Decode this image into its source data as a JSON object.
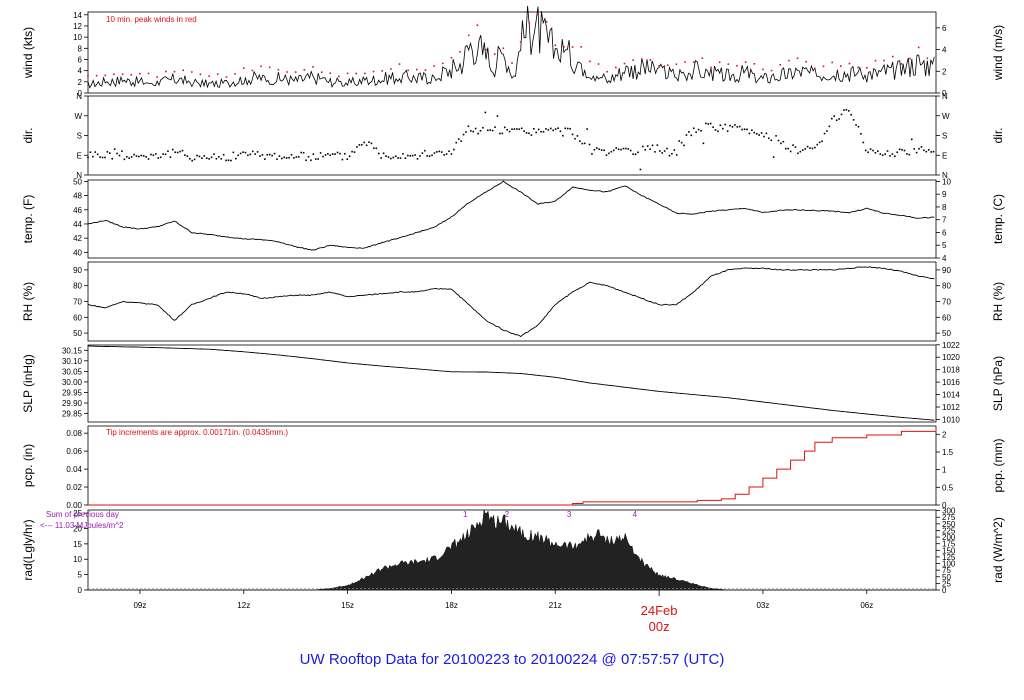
{
  "title": "UW Rooftop Data for 20100223  to  20100224 @ 07:57:57  (UTC)",
  "colors": {
    "line": "#000000",
    "peak": "#e01010",
    "precip": "#e01010",
    "note": "#e01010",
    "rad_note": "#9a1ab8",
    "title": "#1a1ae6"
  },
  "chart_data": {
    "type": "line",
    "x_axis": {
      "unit": "hours since 2010-02-23 00z",
      "range": [
        7.5,
        32.0
      ],
      "ticks": [
        {
          "x": 9,
          "label": "09z"
        },
        {
          "x": 12,
          "label": "12z"
        },
        {
          "x": 15,
          "label": "15z"
        },
        {
          "x": 18,
          "label": "18z"
        },
        {
          "x": 21,
          "label": "21z"
        },
        {
          "x": 27,
          "label": "03z"
        },
        {
          "x": 30,
          "label": "06z"
        }
      ],
      "date_marker": {
        "x": 24,
        "date": "24Feb",
        "time": "00z"
      }
    },
    "panels": [
      {
        "id": "wind",
        "ylabel_left": "wind (kts)",
        "ylabel_right": "wind (m/s)",
        "ylim": [
          0,
          14.5
        ],
        "left_ticks": [
          0,
          2,
          4,
          6,
          8,
          10,
          12,
          14
        ],
        "right_ticks": [
          {
            "v": 0,
            "label": "0"
          },
          {
            "v": 3.888,
            "label": "2"
          },
          {
            "v": 7.776,
            "label": "4"
          },
          {
            "v": 11.664,
            "label": "6"
          }
        ],
        "note": "10 min. peak winds in red",
        "series": [
          {
            "x": [
              7.5,
              8,
              8.5,
              9,
              9.5,
              10,
              10.5,
              11,
              11.5,
              12,
              12.5,
              13,
              13.5,
              14,
              14.5,
              15,
              15.5,
              16,
              16.5,
              17,
              17.5,
              18,
              18.3,
              18.6,
              18.9,
              19.2,
              19.5,
              19.8,
              20.1,
              20.4,
              20.7,
              21,
              21.5,
              22,
              22.5,
              23,
              23.5,
              24,
              24.5,
              25,
              25.5,
              26,
              26.5,
              27,
              27.5,
              28,
              28.5,
              29,
              29.5,
              30,
              30.5,
              31,
              31.5,
              32
            ],
            "y": [
              1.5,
              2,
              2.2,
              2,
              1.8,
              2.5,
              2,
              1.6,
              1.8,
              2.5,
              2.8,
              2.6,
              2.2,
              2.8,
              2,
              1.8,
              2.2,
              2.5,
              3,
              2.6,
              2.8,
              4.2,
              5.5,
              9,
              7.5,
              5,
              7,
              3,
              10.5,
              12.2,
              9.5,
              7.5,
              6.5,
              4.2,
              2.2,
              4,
              4.4,
              3.8,
              3.2,
              4.2,
              3.5,
              3,
              3.6,
              2.5,
              3,
              4,
              3.2,
              3.8,
              3.5,
              3.4,
              3.8,
              4.2,
              5.5,
              4.5
            ]
          }
        ]
      },
      {
        "id": "dir",
        "ylabel_left": "dir.",
        "ylabel_right": "dir.",
        "ylim": [
          0,
          360
        ],
        "left_ticks": [
          {
            "v": 0,
            "label": "N"
          },
          {
            "v": 90,
            "label": "E"
          },
          {
            "v": 180,
            "label": "S"
          },
          {
            "v": 270,
            "label": "W"
          },
          {
            "v": 360,
            "label": "N"
          }
        ],
        "series": [
          {
            "x": [
              7.5,
              8,
              8.5,
              9,
              9.5,
              10,
              10.5,
              11,
              11.5,
              12,
              12.5,
              13,
              13.5,
              14,
              14.5,
              15,
              15.5,
              16,
              16.5,
              17,
              17.5,
              18,
              18.5,
              19,
              19.5,
              20,
              20.5,
              21,
              21.5,
              22,
              22.5,
              23,
              23.5,
              24,
              24.5,
              25,
              25.5,
              26,
              26.5,
              27,
              27.5,
              28,
              28.5,
              29,
              29.5,
              30,
              30.5,
              31,
              31.5,
              32
            ],
            "y": [
              95,
              92,
              90,
              88,
              90,
              100,
              85,
              82,
              80,
              95,
              90,
              88,
              82,
              85,
              88,
              85,
              160,
              90,
              95,
              92,
              95,
              110,
              205,
              200,
              200,
              198,
              200,
              200,
              195,
              120,
              110,
              100,
              110,
              120,
              100,
              210,
              220,
              215,
              205,
              190,
              150,
              110,
              120,
              240,
              310,
              110,
              100,
              105,
              115,
              125
            ]
          }
        ]
      },
      {
        "id": "temp",
        "ylabel_left": "temp. (F)",
        "ylabel_right": "temp. (C)",
        "ylim": [
          39.2,
          50.2
        ],
        "left_ticks": [
          40,
          42,
          44,
          46,
          48,
          50
        ],
        "right_ticks": [
          {
            "v": 39.2,
            "label": "4"
          },
          {
            "v": 41.0,
            "label": "5"
          },
          {
            "v": 42.8,
            "label": "6"
          },
          {
            "v": 44.6,
            "label": "7"
          },
          {
            "v": 46.4,
            "label": "8"
          },
          {
            "v": 48.2,
            "label": "9"
          },
          {
            "v": 50.0,
            "label": "10"
          }
        ],
        "series": [
          {
            "x": [
              7.5,
              8,
              8.5,
              9,
              9.5,
              10,
              10.5,
              11,
              11.5,
              12,
              12.5,
              13,
              13.5,
              14,
              14.5,
              15,
              15.5,
              16,
              16.5,
              17,
              17.5,
              18,
              18.5,
              19,
              19.5,
              20,
              20.5,
              21,
              21.5,
              22,
              22.5,
              23,
              23.5,
              24,
              24.5,
              25,
              25.5,
              26,
              26.5,
              27,
              27.5,
              28,
              28.5,
              29,
              29.5,
              30,
              30.5,
              31,
              31.5,
              32
            ],
            "y": [
              44,
              44.5,
              43.6,
              43.3,
              43.6,
              44.4,
              42.8,
              42.5,
              42.2,
              41.9,
              41.8,
              41.5,
              40.8,
              40.3,
              41,
              40.7,
              40.6,
              41.4,
              42,
              42.8,
              43.5,
              45,
              47,
              48.5,
              50,
              48.5,
              46.8,
              47.2,
              49.2,
              48.8,
              48.5,
              49.4,
              48,
              46.8,
              45.5,
              45.4,
              45.8,
              46,
              46.2,
              45.6,
              45.9,
              46,
              45.9,
              45.8,
              45.6,
              46.2,
              45.5,
              45.2,
              44.8,
              45
            ]
          }
        ]
      },
      {
        "id": "rh",
        "ylabel_left": "RH (%)",
        "ylabel_right": "RH (%)",
        "ylim": [
          45,
          95
        ],
        "left_ticks": [
          50,
          60,
          70,
          80,
          90
        ],
        "right_ticks": [
          {
            "v": 50,
            "label": "50"
          },
          {
            "v": 60,
            "label": "60"
          },
          {
            "v": 70,
            "label": "70"
          },
          {
            "v": 80,
            "label": "80"
          },
          {
            "v": 90,
            "label": "90"
          }
        ],
        "series": [
          {
            "x": [
              7.5,
              8,
              8.5,
              9,
              9.5,
              10,
              10.5,
              11,
              11.5,
              12,
              12.5,
              13,
              13.5,
              14,
              14.5,
              15,
              15.5,
              16,
              16.5,
              17,
              17.5,
              18,
              18.5,
              19,
              19.5,
              20,
              20.5,
              21,
              21.5,
              22,
              22.5,
              23,
              23.5,
              24,
              24.5,
              25,
              25.5,
              26,
              26.5,
              27,
              27.5,
              28,
              28.5,
              29,
              29.5,
              30,
              30.5,
              31,
              31.5,
              32
            ],
            "y": [
              68,
              66,
              70,
              69,
              68,
              58,
              68,
              72,
              76,
              75,
              72,
              73,
              74,
              74,
              76,
              73,
              74,
              75,
              76,
              76,
              78,
              78,
              68,
              58,
              52,
              48,
              55,
              68,
              76,
              82,
              80,
              76,
              72,
              68,
              68,
              76,
              86,
              90,
              91,
              91,
              90,
              90,
              90,
              90,
              91,
              92,
              91,
              89,
              86,
              84
            ]
          }
        ]
      },
      {
        "id": "slp",
        "ylabel_left": "SLP (inHg)",
        "ylabel_right": "SLP (hPa)",
        "ylim": [
          29.81,
          30.175
        ],
        "left_ticks": [
          29.85,
          29.9,
          29.95,
          30.0,
          30.05,
          30.1,
          30.15
        ],
        "left_labels": [
          "29.85",
          "29.90",
          "29.95",
          "30.00",
          "30.05",
          "30.10",
          "30.15"
        ],
        "right_ticks": [
          {
            "v": 29.822,
            "label": "1010"
          },
          {
            "v": 29.881,
            "label": "1012"
          },
          {
            "v": 29.94,
            "label": "1014"
          },
          {
            "v": 29.999,
            "label": "1016"
          },
          {
            "v": 30.058,
            "label": "1018"
          },
          {
            "v": 30.117,
            "label": "1020"
          },
          {
            "v": 30.176,
            "label": "1022"
          }
        ],
        "series": [
          {
            "x": [
              7.5,
              8,
              9,
              10,
              11,
              12,
              13,
              14,
              15,
              16,
              17,
              18,
              19,
              20,
              21,
              22,
              23,
              24,
              25,
              26,
              27,
              28,
              29,
              30,
              31,
              32
            ],
            "y": [
              30.17,
              30.168,
              30.165,
              30.16,
              30.155,
              30.143,
              30.128,
              30.11,
              30.09,
              30.075,
              30.062,
              30.048,
              30.047,
              30.04,
              30.022,
              29.995,
              29.975,
              29.955,
              29.94,
              29.925,
              29.905,
              29.885,
              29.865,
              29.848,
              29.832,
              29.818
            ]
          }
        ]
      },
      {
        "id": "pcp",
        "ylabel_left": "pcp. (in)",
        "ylabel_right": "pcp. (mm)",
        "ylim": [
          0,
          0.088
        ],
        "left_ticks": [
          0,
          0.02,
          0.04,
          0.06,
          0.08
        ],
        "left_labels": [
          "0.00",
          "0.02",
          "0.04",
          "0.06",
          "0.08"
        ],
        "right_ticks": [
          {
            "v": 0,
            "label": "0"
          },
          {
            "v": 0.01969,
            "label": "0.5"
          },
          {
            "v": 0.03937,
            "label": "1"
          },
          {
            "v": 0.05906,
            "label": "1.5"
          },
          {
            "v": 0.07874,
            "label": "2"
          }
        ],
        "note": "Tip increments are approx. 0.00171in. (0.0435mm.)",
        "series": [
          {
            "x": [
              7.5,
              21.3,
              21.5,
              21.8,
              22.5,
              23,
              24,
              24.9,
              25.1,
              25.8,
              26.2,
              26.6,
              27,
              27.4,
              27.8,
              28.2,
              28.5,
              29,
              30,
              31,
              32
            ],
            "y": [
              0,
              0,
              0.0017,
              0.0034,
              0.0034,
              0.0034,
              0.0034,
              0.0034,
              0.0051,
              0.0068,
              0.012,
              0.02,
              0.03,
              0.04,
              0.05,
              0.06,
              0.07,
              0.075,
              0.078,
              0.082,
              0.085
            ]
          }
        ]
      },
      {
        "id": "rad",
        "ylabel_left": "rad(Lgly/hr)",
        "ylabel_right": "rad (W/m^2)",
        "ylim": [
          0,
          26
        ],
        "left_ticks": [
          0,
          5,
          10,
          15,
          20,
          25
        ],
        "right_ticks": [
          {
            "v": 0,
            "label": "0"
          },
          {
            "v": 2.15,
            "label": "25"
          },
          {
            "v": 4.3,
            "label": "50"
          },
          {
            "v": 6.45,
            "label": "75"
          },
          {
            "v": 8.6,
            "label": "100"
          },
          {
            "v": 10.75,
            "label": "125"
          },
          {
            "v": 12.9,
            "label": "150"
          },
          {
            "v": 15.05,
            "label": "175"
          },
          {
            "v": 17.2,
            "label": "200"
          },
          {
            "v": 19.35,
            "label": "225"
          },
          {
            "v": 21.5,
            "label": "250"
          },
          {
            "v": 23.65,
            "label": "275"
          },
          {
            "v": 25.8,
            "label": "300"
          }
        ],
        "note_line1": "Sum of previous day",
        "note_line2": "<--- 11.03 MJoules/m^2",
        "markers": [
          {
            "x": 18.4,
            "label": "1"
          },
          {
            "x": 19.6,
            "label": "2"
          },
          {
            "x": 21.4,
            "label": "3"
          },
          {
            "x": 23.3,
            "label": "4"
          }
        ],
        "series": [
          {
            "x": [
              7.5,
              14,
              14.5,
              15,
              15.5,
              16,
              16.5,
              17,
              17.5,
              18,
              18.5,
              18.8,
              19,
              19.2,
              19.5,
              20,
              20.5,
              21,
              21.5,
              22,
              22.3,
              22.6,
              23,
              23.3,
              23.6,
              24,
              24.5,
              25,
              25.5,
              26,
              32
            ],
            "y": [
              0,
              0,
              0.5,
              1.5,
              4,
              7,
              8.5,
              9,
              10,
              14,
              18,
              22,
              25.5,
              22,
              23,
              19,
              17,
              15,
              14,
              17,
              18,
              16,
              17,
              12,
              8,
              5,
              3.5,
              2,
              0.5,
              0,
              0
            ]
          }
        ]
      }
    ]
  }
}
